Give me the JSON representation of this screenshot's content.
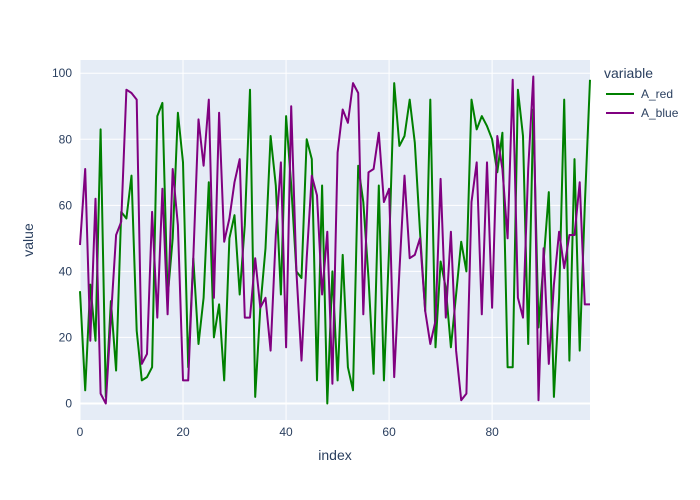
{
  "chart_data": {
    "type": "line",
    "xlabel": "index",
    "ylabel": "value",
    "legend_title": "variable",
    "legend_position": "right",
    "grid": true,
    "background_color": "#e5ecf6",
    "xlim": [
      0,
      99
    ],
    "ylim": [
      -5,
      104
    ],
    "x_ticks": [
      0,
      20,
      40,
      60,
      80
    ],
    "y_ticks": [
      0,
      20,
      40,
      60,
      80,
      100
    ],
    "x": [
      0,
      1,
      2,
      3,
      4,
      5,
      6,
      7,
      8,
      9,
      10,
      11,
      12,
      13,
      14,
      15,
      16,
      17,
      18,
      19,
      20,
      21,
      22,
      23,
      24,
      25,
      26,
      27,
      28,
      29,
      30,
      31,
      32,
      33,
      34,
      35,
      36,
      37,
      38,
      39,
      40,
      41,
      42,
      43,
      44,
      45,
      46,
      47,
      48,
      49,
      50,
      51,
      52,
      53,
      54,
      55,
      56,
      57,
      58,
      59,
      60,
      61,
      62,
      63,
      64,
      65,
      66,
      67,
      68,
      69,
      70,
      71,
      72,
      73,
      74,
      75,
      76,
      77,
      78,
      79,
      80,
      81,
      82,
      83,
      84,
      85,
      86,
      87,
      88,
      89,
      90,
      91,
      92,
      93,
      94,
      95,
      96,
      97,
      98,
      99
    ],
    "series": [
      {
        "name": "A_red",
        "color": "#008000",
        "values": [
          34,
          4,
          36,
          19,
          83,
          2,
          31,
          10,
          58,
          56,
          69,
          22,
          7,
          8,
          11,
          87,
          91,
          32,
          50,
          88,
          73,
          11,
          44,
          18,
          32,
          67,
          20,
          30,
          7,
          50,
          57,
          33,
          54,
          95,
          2,
          29,
          47,
          81,
          66,
          33,
          87,
          66,
          40,
          38,
          80,
          74,
          7,
          66,
          0,
          40,
          7,
          45,
          11,
          4,
          72,
          61,
          38,
          9,
          66,
          7,
          47,
          97,
          78,
          81,
          92,
          79,
          52,
          28,
          92,
          17,
          43,
          35,
          17,
          33,
          49,
          40,
          92,
          83,
          87,
          84,
          80,
          70,
          82,
          11,
          11,
          95,
          81,
          18,
          89,
          23,
          43,
          64,
          2,
          32,
          92,
          13,
          74,
          16,
          60,
          98
        ]
      },
      {
        "name": "A_blue",
        "color": "#800080",
        "values": [
          48,
          71,
          19,
          62,
          3,
          0,
          26,
          51,
          55,
          95,
          94,
          92,
          12,
          15,
          58,
          26,
          65,
          27,
          71,
          54,
          7,
          7,
          44,
          86,
          72,
          92,
          32,
          88,
          49,
          56,
          67,
          74,
          26,
          26,
          44,
          29,
          32,
          16,
          51,
          73,
          17,
          90,
          40,
          13,
          44,
          69,
          63,
          33,
          52,
          6,
          76,
          89,
          85,
          97,
          94,
          27,
          70,
          71,
          82,
          61,
          65,
          8,
          40,
          69,
          44,
          45,
          50,
          28,
          18,
          25,
          68,
          26,
          52,
          16,
          1,
          3,
          61,
          73,
          27,
          73,
          29,
          81,
          71,
          50,
          98,
          32,
          26,
          71,
          99,
          1,
          47,
          12,
          36,
          52,
          41,
          51,
          51,
          67,
          30,
          30
        ]
      }
    ]
  }
}
